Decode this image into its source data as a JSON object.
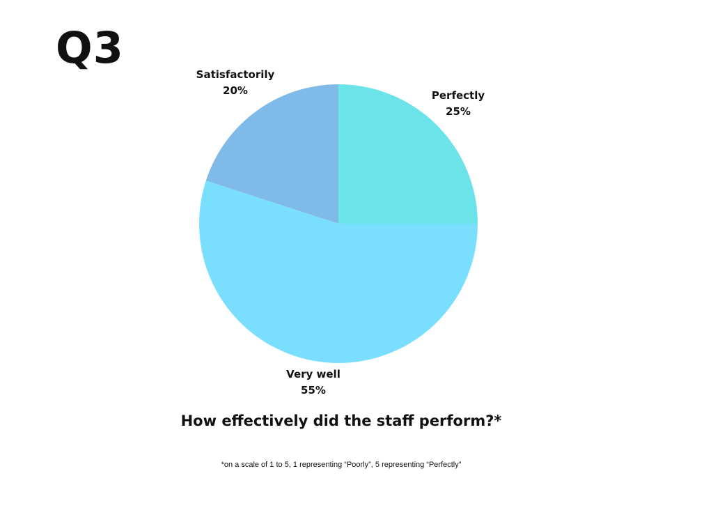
{
  "page": {
    "question_number": "Q3",
    "question": "How effectively did the staff perform?*",
    "footnote": "*on a scale of 1 to 5, 1 representing “Poorly”, 5 representing “Perfectly”"
  },
  "chart_data": {
    "type": "pie",
    "title": "",
    "start_angle_deg": 0,
    "direction": "clockwise",
    "slices": [
      {
        "label": "Perfectly",
        "value": 25,
        "value_label": "25%",
        "color": "#6be3e9"
      },
      {
        "label": "Very well",
        "value": 55,
        "value_label": "55%",
        "color": "#7adfff"
      },
      {
        "label": "Satisfactorily",
        "value": 20,
        "value_label": "20%",
        "color": "#7fbae8"
      }
    ]
  }
}
